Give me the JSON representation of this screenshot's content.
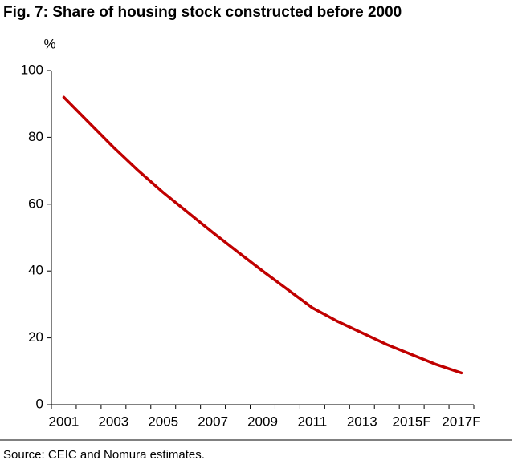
{
  "chart_data": {
    "type": "line",
    "title": "Fig. 7: Share of housing stock constructed before 2000",
    "y_label": "%",
    "source": "Source: CEIC and Nomura estimates.",
    "categories": [
      "2001",
      null,
      "2003",
      null,
      "2005",
      null,
      "2007",
      null,
      "2009",
      null,
      "2011",
      null,
      "2013",
      null,
      "2015F",
      null,
      "2017F"
    ],
    "series": [
      {
        "name": "Share of housing stock constructed before 2000",
        "color": "#c00000",
        "values": [
          92,
          84.5,
          77,
          70,
          63.5,
          57.5,
          51.5,
          45.7,
          40,
          34.5,
          29,
          25,
          21.5,
          18,
          15,
          12,
          9.5
        ]
      }
    ],
    "ylim": [
      0,
      100
    ],
    "yticks": [
      0,
      20,
      40,
      60,
      80,
      100
    ],
    "grid": false
  }
}
